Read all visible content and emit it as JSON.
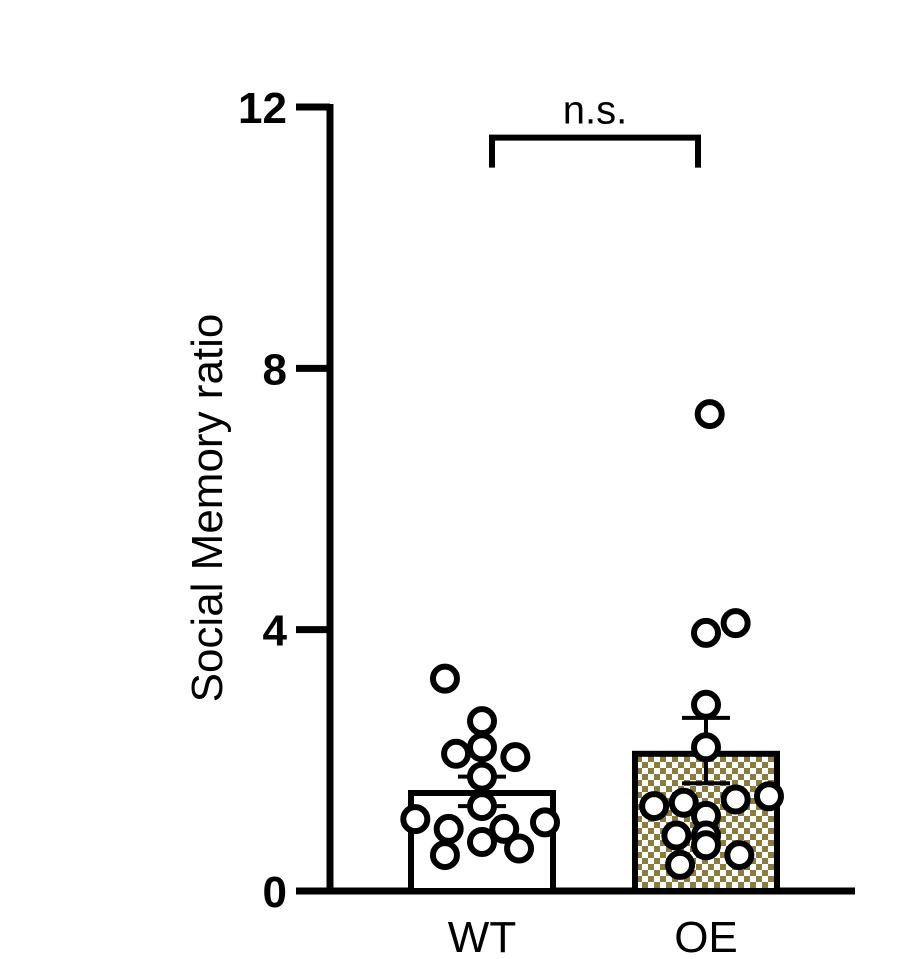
{
  "chart_data": {
    "type": "bar",
    "ylabel": "Social Memory ratio",
    "ylim": [
      0,
      12
    ],
    "yticks": [
      0,
      4,
      8,
      12
    ],
    "categories": [
      "WT",
      "OE"
    ],
    "bars": [
      {
        "category": "WT",
        "mean": 1.5,
        "sem_low": 1.3,
        "sem_high": 1.75,
        "fill": "#ffffff",
        "points": [
          {
            "x": -0.5,
            "y": 3.25
          },
          {
            "x": 0.0,
            "y": 2.6
          },
          {
            "x": -0.35,
            "y": 2.1
          },
          {
            "x": 0.0,
            "y": 2.2
          },
          {
            "x": 0.45,
            "y": 2.05
          },
          {
            "x": 0.0,
            "y": 1.75
          },
          {
            "x": 0.0,
            "y": 1.3
          },
          {
            "x": -0.9,
            "y": 1.1
          },
          {
            "x": -0.45,
            "y": 0.95
          },
          {
            "x": 0.3,
            "y": 0.95
          },
          {
            "x": 0.85,
            "y": 1.05
          },
          {
            "x": 0.0,
            "y": 0.75
          },
          {
            "x": -0.5,
            "y": 0.55
          },
          {
            "x": 0.5,
            "y": 0.65
          }
        ]
      },
      {
        "category": "OE",
        "mean": 2.1,
        "sem_low": 1.65,
        "sem_high": 2.65,
        "fill": "checkered",
        "points": [
          {
            "x": 0.05,
            "y": 7.3
          },
          {
            "x": 0.4,
            "y": 4.1
          },
          {
            "x": 0.0,
            "y": 3.95
          },
          {
            "x": 0.0,
            "y": 2.85
          },
          {
            "x": 0.0,
            "y": 2.2
          },
          {
            "x": -0.7,
            "y": 1.3
          },
          {
            "x": -0.3,
            "y": 1.35
          },
          {
            "x": 0.0,
            "y": 1.15
          },
          {
            "x": 0.4,
            "y": 1.4
          },
          {
            "x": 0.85,
            "y": 1.45
          },
          {
            "x": -0.4,
            "y": 0.85
          },
          {
            "x": 0.0,
            "y": 0.85
          },
          {
            "x": 0.0,
            "y": 0.7
          },
          {
            "x": -0.35,
            "y": 0.4
          },
          {
            "x": 0.45,
            "y": 0.55
          }
        ]
      }
    ],
    "annotation": {
      "text": "n.s.",
      "from": "WT",
      "to": "OE",
      "y": 11.5
    },
    "colors": {
      "checker_dark": "#8a7b40",
      "checker_light": "#ffffff"
    }
  }
}
